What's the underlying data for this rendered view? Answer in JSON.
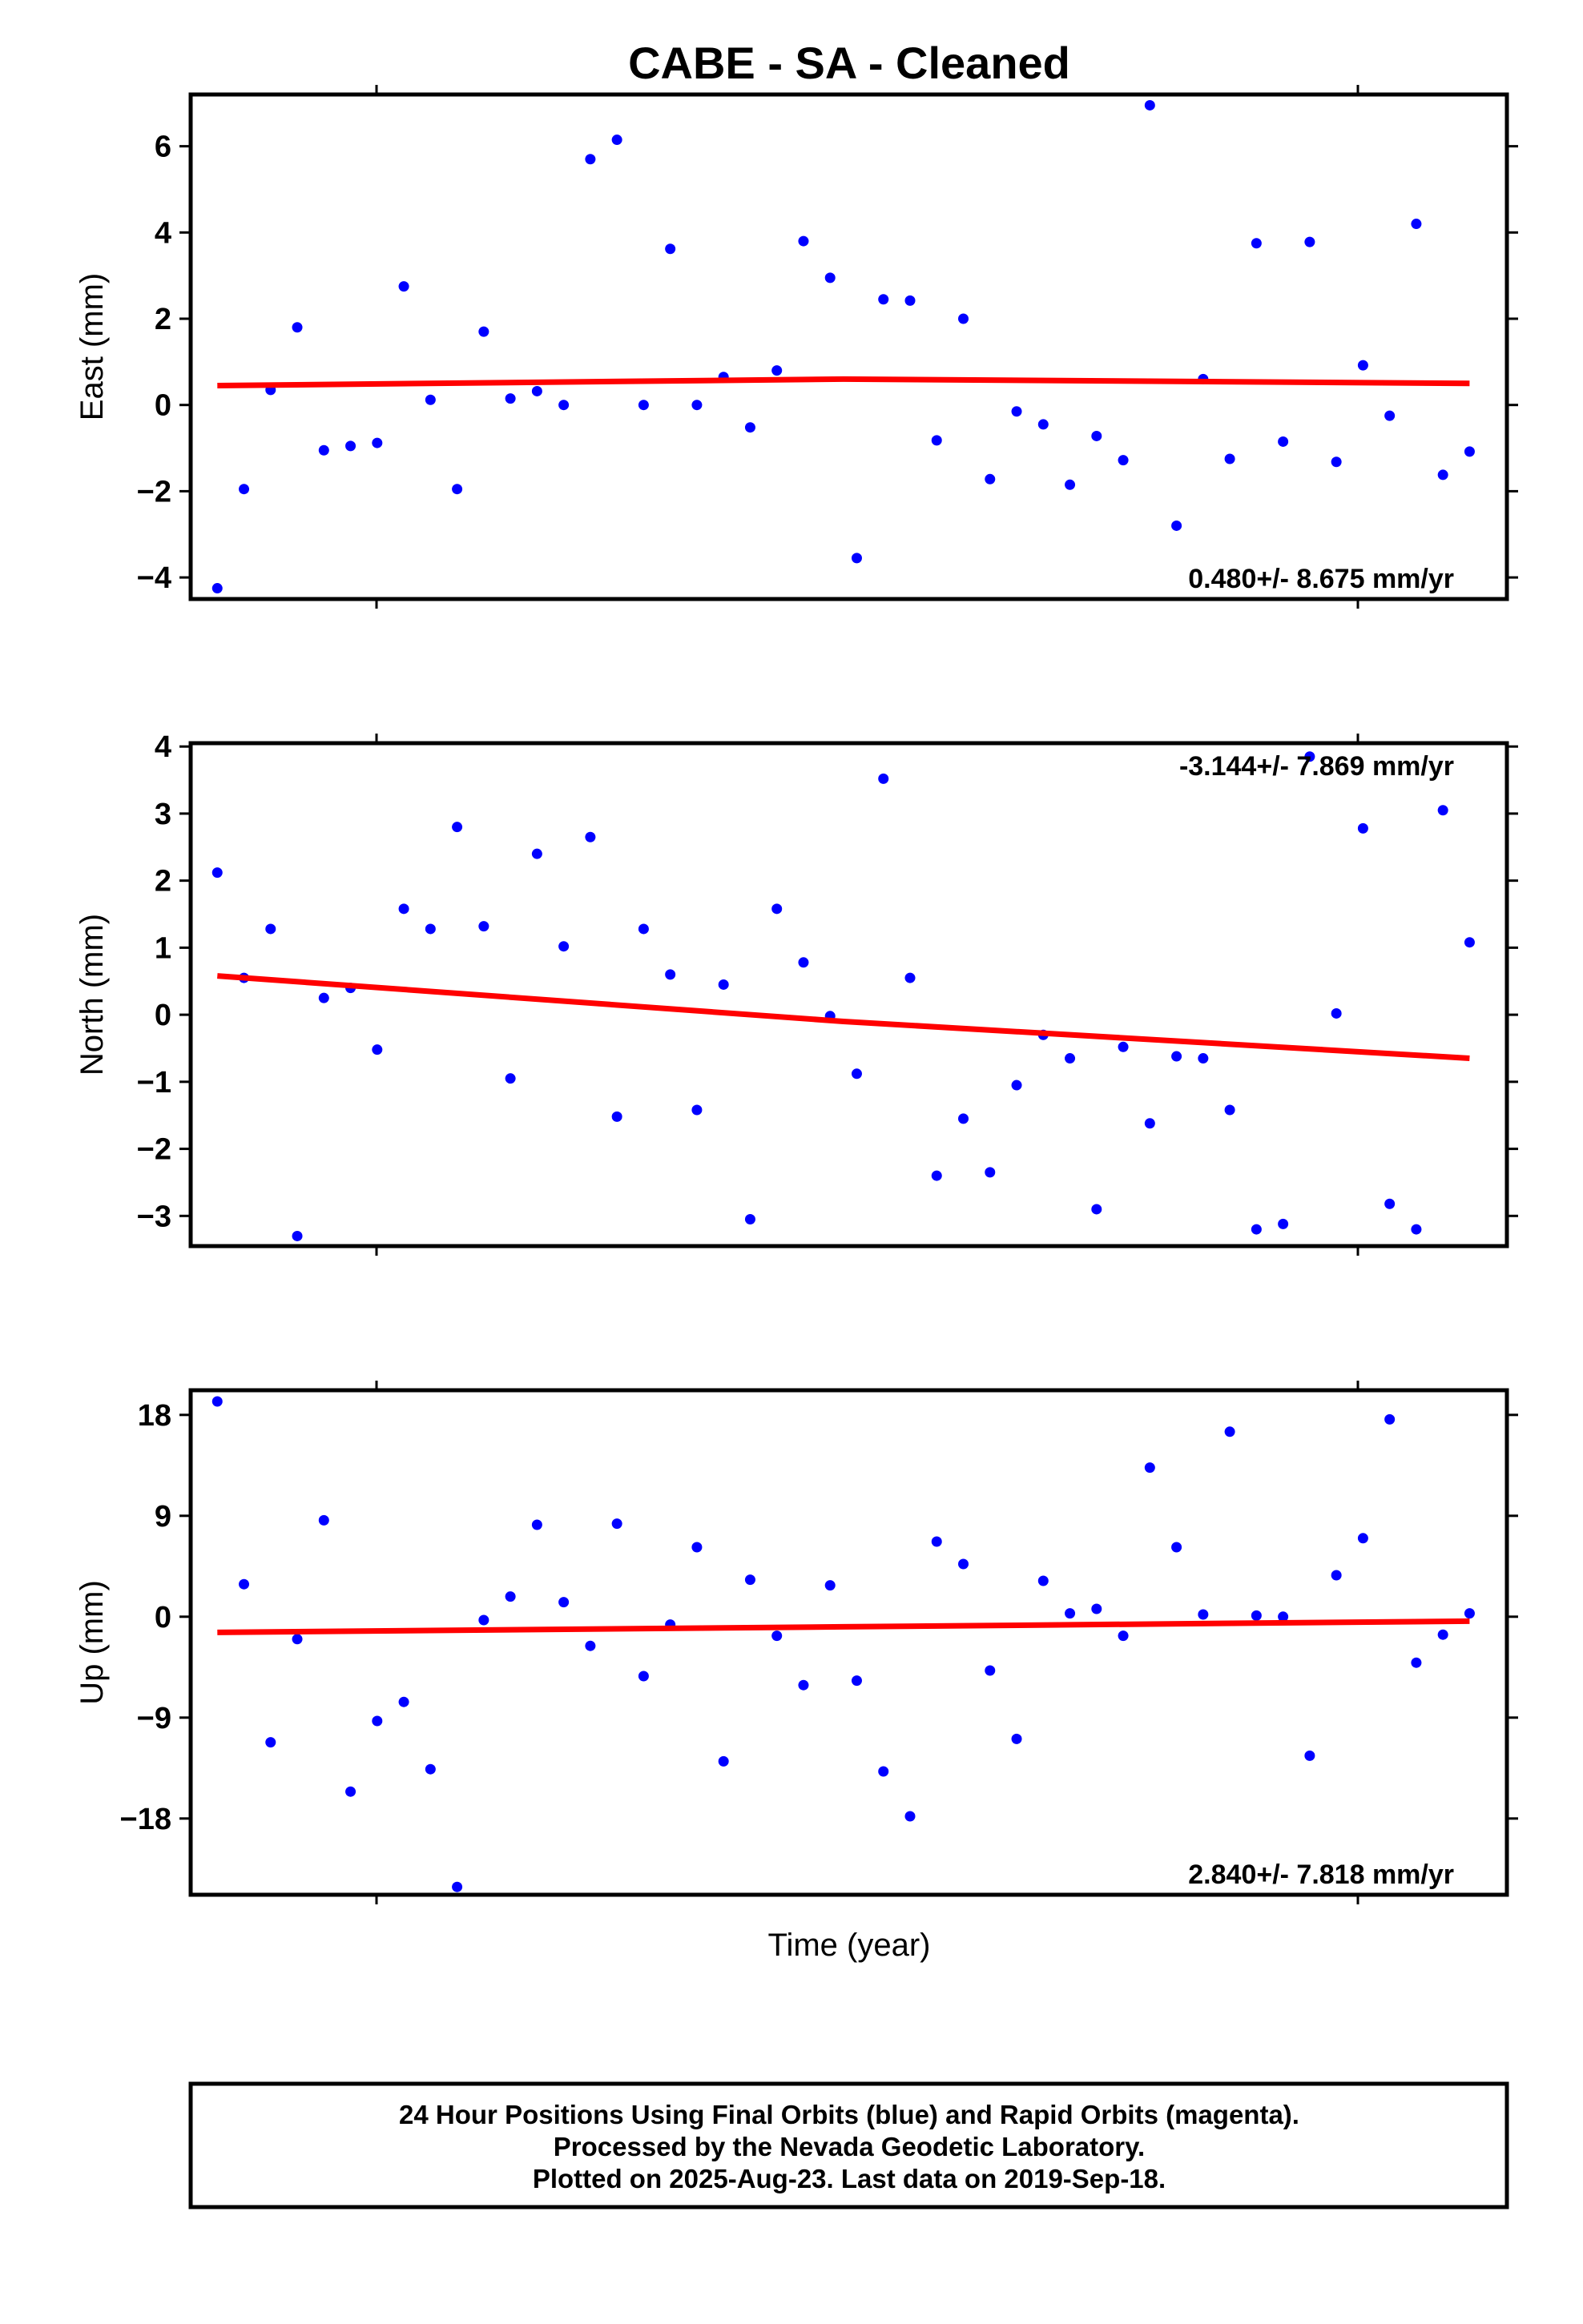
{
  "chart_data": {
    "title": "CABE  - SA - Cleaned",
    "xlabel": "Time (year)",
    "colors": {
      "points": "#0000ff",
      "trend": "#ff0000",
      "frame": "#000000"
    },
    "grid": false,
    "panels": [
      {
        "type": "scatter",
        "ylabel": "East (mm)",
        "ylim": [
          -4.5,
          7.2
        ],
        "yticks": [
          -4,
          -2,
          0,
          2,
          4,
          6
        ],
        "ytick_labels": [
          "−4",
          "−2",
          "0",
          "2",
          "4",
          "6"
        ],
        "rate_label": "0.480+/- 8.675 mm/yr",
        "rate_position": "bottom-right",
        "points": [
          [
            0,
            -4.25
          ],
          [
            1,
            -1.95
          ],
          [
            2,
            0.35
          ],
          [
            3,
            1.8
          ],
          [
            4,
            -1.05
          ],
          [
            5,
            -0.95
          ],
          [
            6,
            -0.88
          ],
          [
            7,
            2.75
          ],
          [
            8,
            0.12
          ],
          [
            9,
            -1.95
          ],
          [
            10,
            1.7
          ],
          [
            11,
            0.15
          ],
          [
            12,
            0.32
          ],
          [
            13,
            0.0
          ],
          [
            14,
            5.7
          ],
          [
            15,
            6.15
          ],
          [
            16,
            0.0
          ],
          [
            17,
            3.62
          ],
          [
            18,
            0.0
          ],
          [
            19,
            0.65
          ],
          [
            20,
            -0.52
          ],
          [
            21,
            0.8
          ],
          [
            22,
            3.8
          ],
          [
            23,
            2.95
          ],
          [
            24,
            -3.55
          ],
          [
            25,
            2.45
          ],
          [
            26,
            2.42
          ],
          [
            27,
            -0.82
          ],
          [
            28,
            2.0
          ],
          [
            29,
            -1.72
          ],
          [
            30,
            -0.15
          ],
          [
            31,
            -0.45
          ],
          [
            32,
            -1.85
          ],
          [
            33,
            -0.72
          ],
          [
            34,
            -1.28
          ],
          [
            35,
            6.95
          ],
          [
            36,
            -2.8
          ],
          [
            37,
            0.6
          ],
          [
            38,
            -1.25
          ],
          [
            39,
            3.75
          ],
          [
            40,
            -0.85
          ],
          [
            41,
            3.78
          ],
          [
            42,
            -1.32
          ],
          [
            43,
            0.92
          ],
          [
            44,
            -0.25
          ],
          [
            45,
            4.2
          ],
          [
            46,
            -1.62
          ],
          [
            47,
            -1.08
          ]
        ],
        "trend": [
          [
            0,
            0.45
          ],
          [
            23.5,
            0.6
          ],
          [
            47,
            0.5
          ]
        ]
      },
      {
        "type": "scatter",
        "ylabel": "North (mm)",
        "ylim": [
          -3.45,
          4.05
        ],
        "yticks": [
          -3,
          -2,
          -1,
          0,
          1,
          2,
          3,
          4
        ],
        "ytick_labels": [
          "−3",
          "−2",
          "−1",
          "0",
          "1",
          "2",
          "3",
          "4"
        ],
        "rate_label": "-3.144+/- 7.869 mm/yr",
        "rate_position": "top-right",
        "points": [
          [
            0,
            2.12
          ],
          [
            1,
            0.55
          ],
          [
            2,
            1.28
          ],
          [
            3,
            -3.3
          ],
          [
            4,
            0.25
          ],
          [
            5,
            0.4
          ],
          [
            6,
            -0.52
          ],
          [
            7,
            1.58
          ],
          [
            8,
            1.28
          ],
          [
            9,
            2.8
          ],
          [
            10,
            1.32
          ],
          [
            11,
            -0.95
          ],
          [
            12,
            2.4
          ],
          [
            13,
            1.02
          ],
          [
            14,
            2.65
          ],
          [
            15,
            -1.52
          ],
          [
            16,
            1.28
          ],
          [
            17,
            0.6
          ],
          [
            18,
            -1.42
          ],
          [
            19,
            0.45
          ],
          [
            20,
            -3.05
          ],
          [
            21,
            1.58
          ],
          [
            22,
            0.78
          ],
          [
            23,
            -0.02
          ],
          [
            24,
            -0.88
          ],
          [
            25,
            3.52
          ],
          [
            26,
            0.55
          ],
          [
            27,
            -2.4
          ],
          [
            28,
            -1.55
          ],
          [
            29,
            -2.35
          ],
          [
            30,
            -1.05
          ],
          [
            31,
            -0.3
          ],
          [
            32,
            -0.65
          ],
          [
            33,
            -2.9
          ],
          [
            34,
            -0.48
          ],
          [
            35,
            -1.62
          ],
          [
            36,
            -0.62
          ],
          [
            37,
            -0.65
          ],
          [
            38,
            -1.42
          ],
          [
            39,
            -3.2
          ],
          [
            40,
            -3.12
          ],
          [
            41,
            3.85
          ],
          [
            42,
            0.02
          ],
          [
            43,
            2.78
          ],
          [
            44,
            -2.82
          ],
          [
            45,
            -3.2
          ],
          [
            46,
            3.05
          ],
          [
            47,
            1.08
          ]
        ],
        "trend": [
          [
            0,
            0.58
          ],
          [
            23.5,
            -0.1
          ],
          [
            47,
            -0.65
          ]
        ]
      },
      {
        "type": "scatter",
        "ylabel": "Up (mm)",
        "ylim": [
          -24.8,
          20.2
        ],
        "yticks": [
          -18,
          -9,
          0,
          9,
          18
        ],
        "ytick_labels": [
          "−18",
          "−9",
          "0",
          "9",
          "18"
        ],
        "rate_label": "2.840+/- 7.818 mm/yr",
        "rate_position": "bottom-right",
        "points": [
          [
            0,
            19.2
          ],
          [
            1,
            2.9
          ],
          [
            2,
            -11.2
          ],
          [
            3,
            -2.0
          ],
          [
            4,
            8.6
          ],
          [
            5,
            -15.6
          ],
          [
            6,
            -9.3
          ],
          [
            7,
            -7.6
          ],
          [
            8,
            -13.6
          ],
          [
            9,
            -24.1
          ],
          [
            10,
            -0.3
          ],
          [
            11,
            1.8
          ],
          [
            12,
            8.2
          ],
          [
            13,
            1.3
          ],
          [
            14,
            -2.6
          ],
          [
            15,
            8.3
          ],
          [
            16,
            -5.3
          ],
          [
            17,
            -0.7
          ],
          [
            18,
            6.2
          ],
          [
            19,
            -12.9
          ],
          [
            20,
            3.3
          ],
          [
            21,
            -1.7
          ],
          [
            22,
            -6.1
          ],
          [
            23,
            2.8
          ],
          [
            24,
            -5.7
          ],
          [
            25,
            -13.8
          ],
          [
            26,
            -17.8
          ],
          [
            27,
            6.7
          ],
          [
            28,
            4.7
          ],
          [
            29,
            -4.8
          ],
          [
            30,
            -10.9
          ],
          [
            31,
            3.2
          ],
          [
            32,
            0.3
          ],
          [
            33,
            0.7
          ],
          [
            34,
            -1.7
          ],
          [
            35,
            13.3
          ],
          [
            36,
            6.2
          ],
          [
            37,
            0.2
          ],
          [
            38,
            16.5
          ],
          [
            39,
            0.1
          ],
          [
            40,
            0.0
          ],
          [
            41,
            -12.4
          ],
          [
            42,
            3.7
          ],
          [
            43,
            7.0
          ],
          [
            44,
            17.6
          ],
          [
            45,
            -4.1
          ],
          [
            46,
            -1.6
          ],
          [
            47,
            0.3
          ]
        ],
        "trend": [
          [
            0,
            -1.4
          ],
          [
            23.5,
            -0.9
          ],
          [
            47,
            -0.4
          ]
        ]
      }
    ],
    "footer": [
      "24 Hour Positions Using Final Orbits (blue) and Rapid Orbits (magenta).",
      "Processed by the Nevada Geodetic Laboratory.",
      "Plotted on 2025-Aug-23. Last data on 2019-Sep-18."
    ]
  }
}
